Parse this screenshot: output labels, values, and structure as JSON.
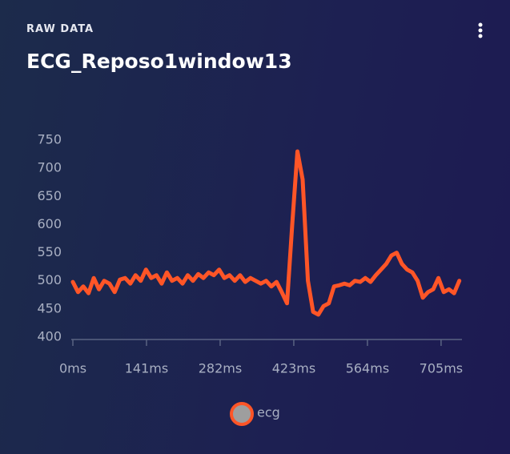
{
  "header": {
    "subtitle": "RAW DATA",
    "title": "ECG_Reposo1window13"
  },
  "chart_data": {
    "type": "line",
    "x": [
      0,
      10,
      20,
      30,
      40,
      50,
      60,
      70,
      80,
      90,
      100,
      110,
      120,
      130,
      140,
      150,
      160,
      170,
      180,
      190,
      200,
      210,
      220,
      230,
      240,
      250,
      260,
      270,
      280,
      290,
      300,
      310,
      320,
      330,
      340,
      350,
      360,
      370,
      380,
      390,
      400,
      410,
      420,
      430,
      440,
      450,
      460,
      470,
      480,
      490,
      500,
      510,
      520,
      530,
      540,
      550,
      560,
      570,
      580,
      590,
      600,
      610,
      620,
      630,
      640,
      650,
      660,
      670,
      680,
      690,
      700,
      710,
      720,
      730,
      740
    ],
    "series": [
      {
        "name": "ecg",
        "color": "#ff5527",
        "values": [
          498,
          480,
          490,
          478,
          505,
          485,
          500,
          495,
          480,
          502,
          505,
          495,
          510,
          500,
          520,
          505,
          510,
          495,
          515,
          500,
          505,
          495,
          510,
          500,
          512,
          505,
          515,
          510,
          520,
          505,
          510,
          500,
          510,
          498,
          505,
          500,
          495,
          500,
          490,
          498,
          480,
          460,
          600,
          730,
          680,
          500,
          445,
          440,
          455,
          460,
          490,
          492,
          495,
          492,
          500,
          498,
          505,
          498,
          510,
          520,
          530,
          545,
          550,
          530,
          520,
          515,
          500,
          470,
          480,
          485,
          505,
          480,
          485,
          478,
          500
        ]
      }
    ],
    "xlim": [
      0,
      745
    ],
    "ylim": [
      400,
      750
    ],
    "xticks": [
      {
        "value": 0,
        "label": "0ms"
      },
      {
        "value": 141,
        "label": "141ms"
      },
      {
        "value": 282,
        "label": "282ms"
      },
      {
        "value": 423,
        "label": "423ms"
      },
      {
        "value": 564,
        "label": "564ms"
      },
      {
        "value": 705,
        "label": "705ms"
      }
    ],
    "yticks": [
      400,
      450,
      500,
      550,
      600,
      650,
      700,
      750
    ],
    "legend": "bottom"
  }
}
